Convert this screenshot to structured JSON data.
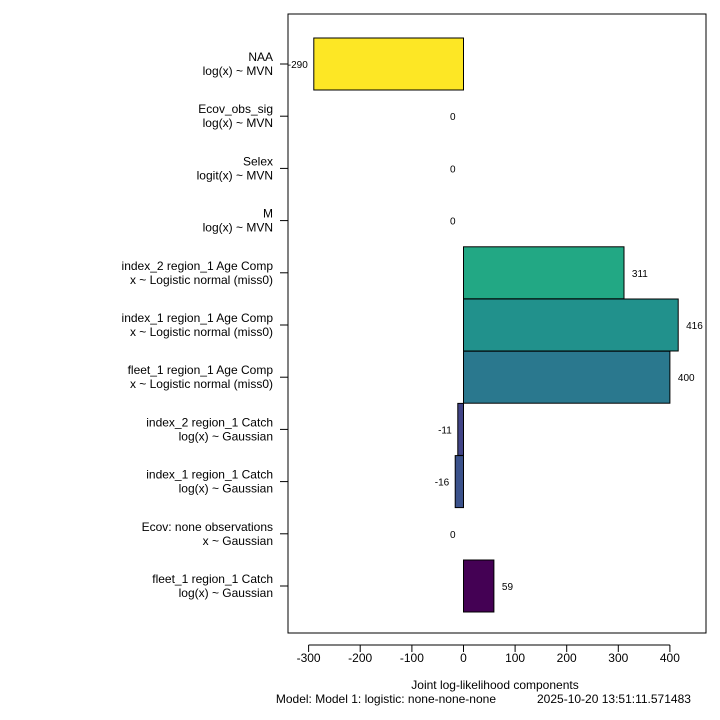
{
  "chart_data": {
    "type": "bar",
    "orientation": "horizontal",
    "categories": [
      {
        "line1": "NAA",
        "line2": "log(x) ~ MVN"
      },
      {
        "line1": "Ecov_obs_sig",
        "line2": "log(x) ~ MVN"
      },
      {
        "line1": "Selex",
        "line2": "logit(x) ~ MVN"
      },
      {
        "line1": "M",
        "line2": "log(x) ~ MVN"
      },
      {
        "line1": "index_2 region_1 Age Comp",
        "line2": "x ~ Logistic normal (miss0)"
      },
      {
        "line1": "index_1 region_1 Age Comp",
        "line2": "x ~ Logistic normal (miss0)"
      },
      {
        "line1": "fleet_1 region_1 Age Comp",
        "line2": "x ~ Logistic normal (miss0)"
      },
      {
        "line1": "index_2 region_1 Catch",
        "line2": "log(x) ~ Gaussian"
      },
      {
        "line1": "index_1 region_1 Catch",
        "line2": "log(x) ~ Gaussian"
      },
      {
        "line1": "Ecov: none observations",
        "line2": "x ~ Gaussian"
      },
      {
        "line1": "fleet_1 region_1 Catch",
        "line2": "log(x) ~ Gaussian"
      }
    ],
    "values": [
      -290,
      0,
      0,
      0,
      311,
      416,
      400,
      -11,
      -16,
      0,
      59
    ],
    "value_labels": [
      "-290",
      "0",
      "0",
      "0",
      "311",
      "416",
      "400",
      "-11",
      "-16",
      "0",
      "59"
    ],
    "colors": [
      "#FDE725",
      "#ffffff",
      "#ffffff",
      "#ffffff",
      "#22A884",
      "#21918C",
      "#2A788E",
      "#414487",
      "#3B528B",
      "#440154",
      "#440154"
    ],
    "xticks": [
      -300,
      -200,
      -100,
      0,
      100,
      200,
      300,
      400
    ],
    "xlim": [
      -340,
      470
    ],
    "xlabel": "Joint log-likelihood components",
    "footer_model": "Model: Model 1: logistic: none-none-none",
    "footer_timestamp": "2025-10-20 13:51:11.571483"
  }
}
